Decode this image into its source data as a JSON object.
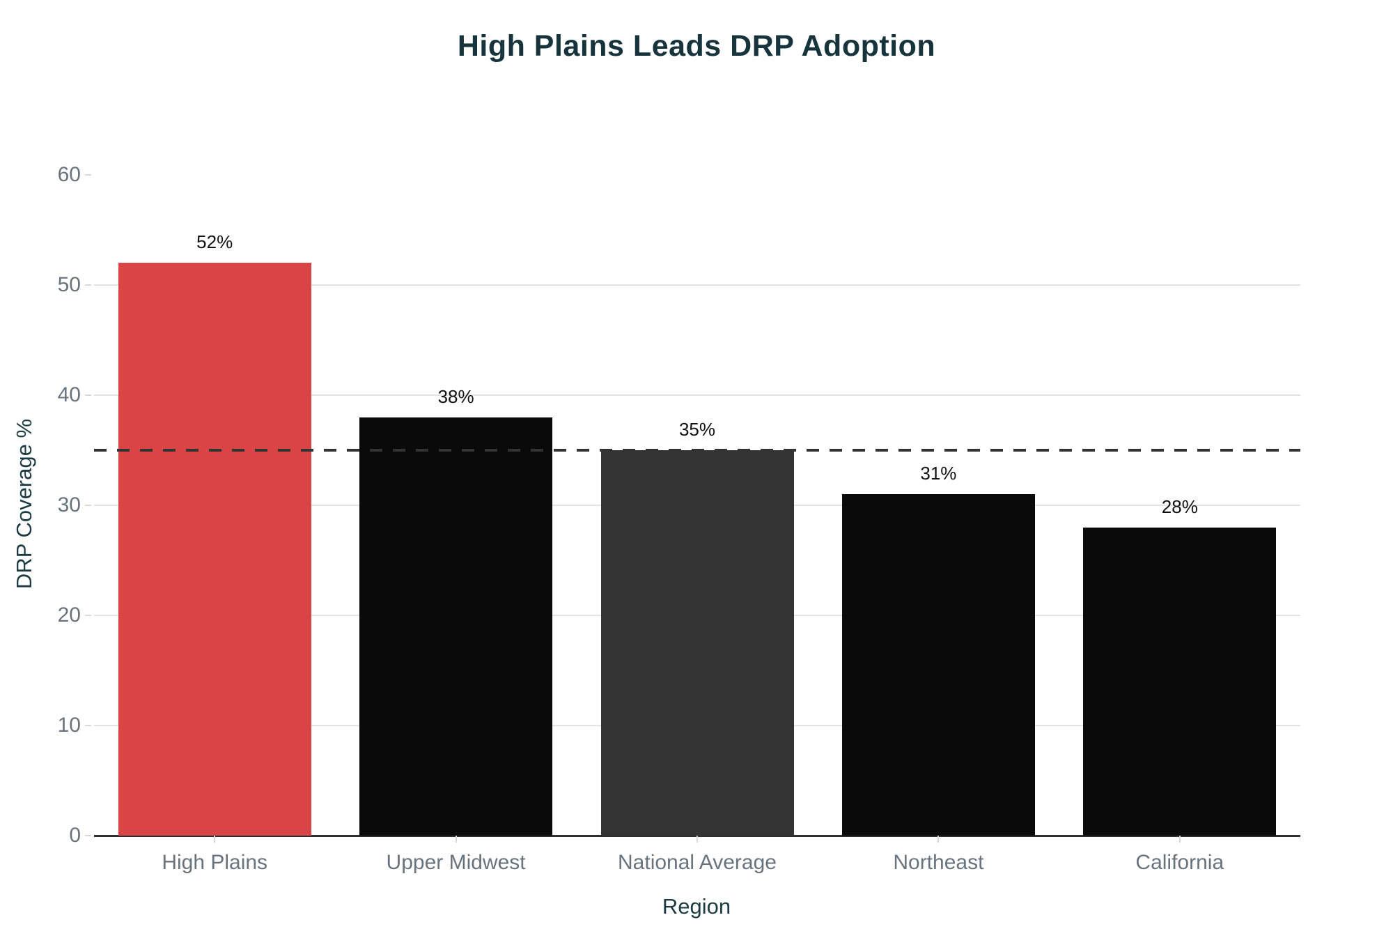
{
  "chart_data": {
    "type": "bar",
    "title": "High Plains Leads DRP Adoption",
    "xlabel": "Region",
    "ylabel": "DRP Coverage %",
    "categories": [
      "High Plains",
      "Upper Midwest",
      "National Average",
      "Northeast",
      "California"
    ],
    "values": [
      52,
      38,
      35,
      31,
      28
    ],
    "value_labels": [
      "52%",
      "38%",
      "35%",
      "31%",
      "28%"
    ],
    "bar_colors": [
      "#d94545",
      "#0a0a0a",
      "#333333",
      "#0a0a0a",
      "#0a0a0a"
    ],
    "ylim": [
      0,
      60
    ],
    "yticks": [
      0,
      10,
      20,
      30,
      40,
      50,
      60
    ],
    "gridline_ticks": [
      10,
      20,
      30,
      40,
      50
    ],
    "grid": "horizontal-only",
    "legend": "none",
    "reference_line": {
      "value": 35,
      "style": "dashed",
      "color": "#333333"
    }
  },
  "colors": {
    "title": "#17343d",
    "axis_title": "#1d3b43",
    "tick_label": "#68737e",
    "grid": "#e4e4e4",
    "tick_mark": "#d8d8d8",
    "baseline": "#2f2f2f",
    "value_label": "#111111",
    "background": "#ffffff"
  }
}
